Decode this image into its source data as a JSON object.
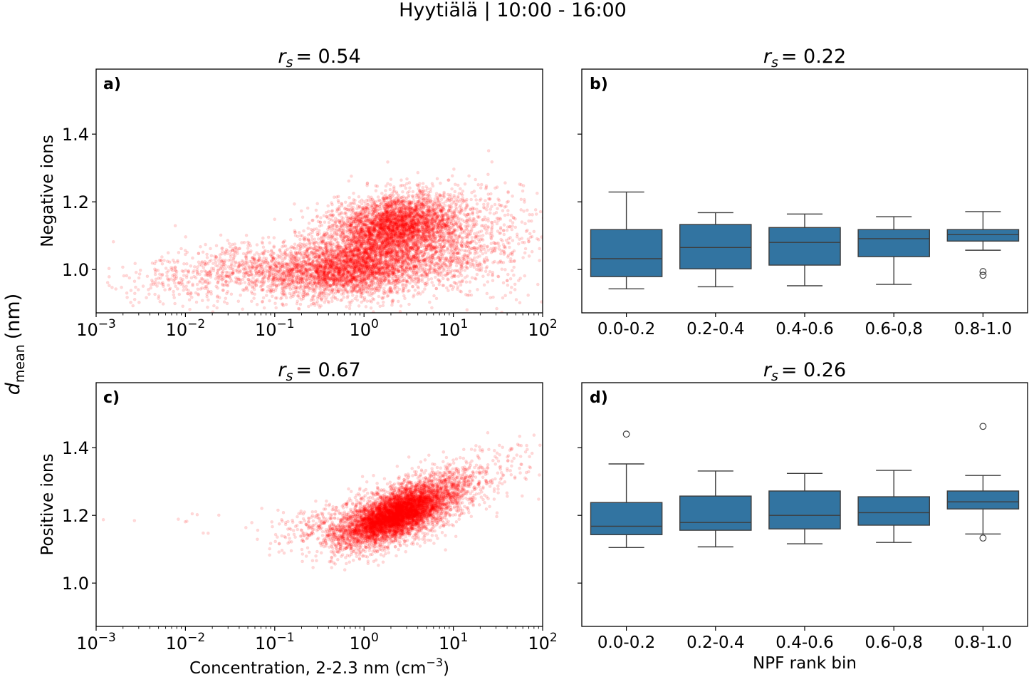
{
  "suptitle": "Hyytiälä | 10:00 - 16:00",
  "shared_ylabel": {
    "symbol": "d",
    "subscript": "mean",
    "unit": "(nm)"
  },
  "chart_data": [
    {
      "panel": "a)",
      "type": "scatter",
      "title": {
        "symbol": "r",
        "subscript": "s",
        "value": "= 0.54"
      },
      "xlabel": "",
      "ylabel": "Negative ions",
      "xscale": "log",
      "xlim": [
        0.001,
        100
      ],
      "ylim": [
        0.872,
        1.592
      ],
      "xticks": [
        {
          "value": 0.001,
          "base": "10",
          "exp": "−3"
        },
        {
          "value": 0.01,
          "base": "10",
          "exp": "−2"
        },
        {
          "value": 0.1,
          "base": "10",
          "exp": "−1"
        },
        {
          "value": 1,
          "base": "10",
          "exp": "0"
        },
        {
          "value": 10,
          "base": "10",
          "exp": "1"
        },
        {
          "value": 100,
          "base": "10",
          "exp": "2"
        }
      ],
      "yticks": [
        "1.0",
        "1.2",
        "1.4"
      ],
      "ytick_values": [
        1.0,
        1.2,
        1.4
      ],
      "color": "#ff0000",
      "alpha": 0.15,
      "clusters": [
        {
          "log10x_mean": -0.2,
          "log10x_sd": 0.45,
          "y_mean": 1.0,
          "y_sd": 0.04,
          "n": 2600,
          "slope": 0.02
        },
        {
          "log10x_mean": 0.35,
          "log10x_sd": 0.35,
          "y_mean": 1.13,
          "y_sd": 0.045,
          "n": 3200,
          "slope": 0.03
        },
        {
          "log10x_mean": 0.5,
          "log10x_sd": 0.55,
          "y_mean": 1.06,
          "y_sd": 0.07,
          "n": 1800,
          "slope": 0.03
        },
        {
          "log10x_mean": -1.3,
          "log10x_sd": 0.7,
          "y_mean": 1.0,
          "y_sd": 0.04,
          "n": 900,
          "slope": 0.03
        },
        {
          "log10x_mean": 1.4,
          "log10x_sd": 0.3,
          "y_mean": 1.1,
          "y_sd": 0.08,
          "n": 260,
          "slope": 0.0
        }
      ]
    },
    {
      "panel": "b)",
      "type": "box",
      "title": {
        "symbol": "r",
        "subscript": "s",
        "value": "= 0.22"
      },
      "xlabel": "",
      "categories": [
        "0.0-0.2",
        "0.2-0.4",
        "0.4-0.6",
        "0.6-0,8",
        "0.8-1.0"
      ],
      "ylim": [
        0.872,
        1.592
      ],
      "ytick_values": [
        1.0,
        1.2,
        1.4
      ],
      "color": "#3274a1",
      "boxes": [
        {
          "whislo": 0.943,
          "q1": 0.979,
          "med": 1.032,
          "q3": 1.118,
          "whishi": 1.229,
          "fliers": []
        },
        {
          "whislo": 0.949,
          "q1": 1.002,
          "med": 1.065,
          "q3": 1.133,
          "whishi": 1.168,
          "fliers": []
        },
        {
          "whislo": 0.952,
          "q1": 1.013,
          "med": 1.08,
          "q3": 1.124,
          "whishi": 1.164,
          "fliers": []
        },
        {
          "whislo": 0.956,
          "q1": 1.038,
          "med": 1.091,
          "q3": 1.118,
          "whishi": 1.156,
          "fliers": []
        },
        {
          "whislo": 1.057,
          "q1": 1.084,
          "med": 1.103,
          "q3": 1.118,
          "whishi": 1.171,
          "fliers": [
            0.994,
            0.983
          ]
        }
      ]
    },
    {
      "panel": "c)",
      "type": "scatter",
      "title": {
        "symbol": "r",
        "subscript": "s",
        "value": "= 0.67"
      },
      "xlabel": "Concentration, 2-2.3 nm (cm",
      "xlabel_sup": "−3",
      "xlabel_end": ")",
      "ylabel": "Positive ions",
      "xscale": "log",
      "xlim": [
        0.001,
        100
      ],
      "ylim": [
        0.872,
        1.592
      ],
      "xticks": [
        {
          "value": 0.001,
          "base": "10",
          "exp": "−3"
        },
        {
          "value": 0.01,
          "base": "10",
          "exp": "−2"
        },
        {
          "value": 0.1,
          "base": "10",
          "exp": "−1"
        },
        {
          "value": 1,
          "base": "10",
          "exp": "0"
        },
        {
          "value": 10,
          "base": "10",
          "exp": "1"
        },
        {
          "value": 100,
          "base": "10",
          "exp": "2"
        }
      ],
      "yticks": [
        "1.0",
        "1.2",
        "1.4"
      ],
      "ytick_values": [
        1.0,
        1.2,
        1.4
      ],
      "color": "#ff0000",
      "alpha": 0.15,
      "clusters": [
        {
          "log10x_mean": 0.35,
          "log10x_sd": 0.28,
          "y_mean": 1.2,
          "y_sd": 0.03,
          "n": 4200,
          "slope": 0.1
        },
        {
          "log10x_mean": 0.5,
          "log10x_sd": 0.4,
          "y_mean": 1.22,
          "y_sd": 0.045,
          "n": 2500,
          "slope": 0.1
        },
        {
          "log10x_mean": -0.4,
          "log10x_sd": 0.35,
          "y_mean": 1.17,
          "y_sd": 0.03,
          "n": 300,
          "slope": 0.04
        },
        {
          "log10x_mean": 1.4,
          "log10x_sd": 0.3,
          "y_mean": 1.33,
          "y_sd": 0.05,
          "n": 120,
          "slope": 0.08
        },
        {
          "log10x_mean": -2.2,
          "log10x_sd": 0.5,
          "y_mean": 1.17,
          "y_sd": 0.03,
          "n": 10,
          "slope": 0.0
        }
      ]
    },
    {
      "panel": "d)",
      "type": "box",
      "title": {
        "symbol": "r",
        "subscript": "s",
        "value": "= 0.26"
      },
      "xlabel": "NPF rank bin",
      "categories": [
        "0.0-0.2",
        "0.2-0.4",
        "0.4-0.6",
        "0.6-0,8",
        "0.8-1.0"
      ],
      "ylim": [
        0.872,
        1.592
      ],
      "ytick_values": [
        1.0,
        1.2,
        1.4
      ],
      "color": "#3274a1",
      "boxes": [
        {
          "whislo": 1.105,
          "q1": 1.143,
          "med": 1.168,
          "q3": 1.238,
          "whishi": 1.352,
          "fliers": [
            1.44
          ]
        },
        {
          "whislo": 1.107,
          "q1": 1.156,
          "med": 1.179,
          "q3": 1.257,
          "whishi": 1.331,
          "fliers": []
        },
        {
          "whislo": 1.116,
          "q1": 1.16,
          "med": 1.2,
          "q3": 1.272,
          "whishi": 1.324,
          "fliers": []
        },
        {
          "whislo": 1.12,
          "q1": 1.171,
          "med": 1.208,
          "q3": 1.255,
          "whishi": 1.333,
          "fliers": []
        },
        {
          "whislo": 1.145,
          "q1": 1.219,
          "med": 1.24,
          "q3": 1.272,
          "whishi": 1.318,
          "fliers": [
            1.463,
            1.133
          ]
        }
      ]
    }
  ]
}
